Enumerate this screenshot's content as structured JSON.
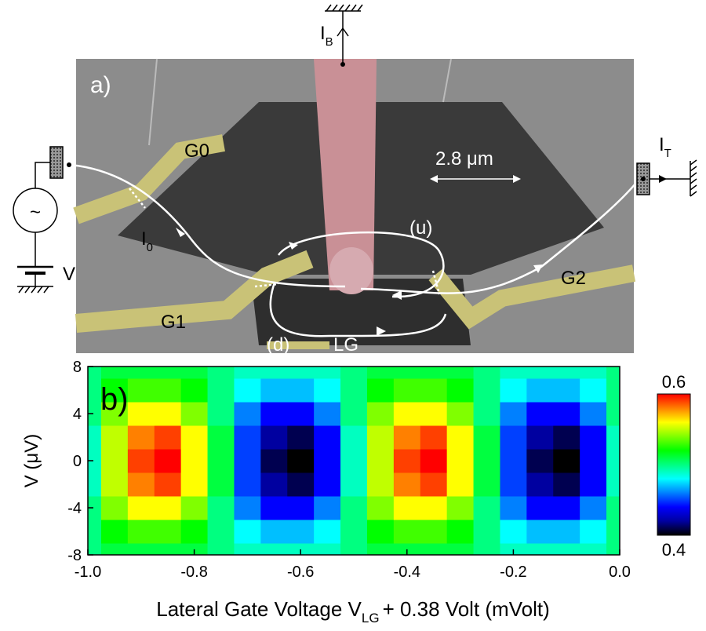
{
  "panel_a": {
    "label": "a)",
    "currents": [
      {
        "symbol": "I",
        "subscript": "B"
      },
      {
        "symbol": "I",
        "subscript": "T"
      },
      {
        "symbol": "I",
        "subscript": "0"
      }
    ],
    "gates": [
      "G0",
      "G1",
      "G2",
      "LG"
    ],
    "paths": [
      "(u)",
      "(d)"
    ],
    "source_symbol": "~",
    "voltage": "V",
    "scale_bar": "2.8 μm"
  },
  "chart_data": {
    "type": "contour",
    "label": "b)",
    "xlabel": {
      "before": "Lateral Gate Voltage V",
      "subscript": "LG",
      "after": "+ 0.38 Volt (mVolt)"
    },
    "ylabel": "V (μV)",
    "x": [
      -1.0,
      -0.95,
      -0.9,
      -0.85,
      -0.8,
      -0.75,
      -0.7,
      -0.65,
      -0.6,
      -0.55,
      -0.5,
      -0.45,
      -0.4,
      -0.35,
      -0.3,
      -0.25,
      -0.2,
      -0.15,
      -0.1,
      -0.05,
      0.0
    ],
    "y": [
      -8,
      -6,
      -4,
      -2,
      0,
      2,
      4,
      6,
      8
    ],
    "z": [
      [
        0.5,
        0.51,
        0.51,
        0.51,
        0.51,
        0.5,
        0.49,
        0.49,
        0.49,
        0.49,
        0.5,
        0.51,
        0.51,
        0.51,
        0.51,
        0.5,
        0.49,
        0.49,
        0.49,
        0.49,
        0.5
      ],
      [
        0.5,
        0.52,
        0.53,
        0.53,
        0.52,
        0.5,
        0.48,
        0.47,
        0.47,
        0.48,
        0.5,
        0.52,
        0.53,
        0.53,
        0.52,
        0.5,
        0.48,
        0.47,
        0.47,
        0.48,
        0.5
      ],
      [
        0.5,
        0.54,
        0.56,
        0.56,
        0.54,
        0.5,
        0.46,
        0.44,
        0.44,
        0.46,
        0.5,
        0.54,
        0.56,
        0.56,
        0.54,
        0.5,
        0.46,
        0.44,
        0.44,
        0.46,
        0.5
      ],
      [
        0.49,
        0.55,
        0.58,
        0.59,
        0.56,
        0.51,
        0.45,
        0.42,
        0.41,
        0.44,
        0.49,
        0.55,
        0.58,
        0.59,
        0.56,
        0.51,
        0.45,
        0.42,
        0.41,
        0.44,
        0.49
      ],
      [
        0.49,
        0.55,
        0.59,
        0.6,
        0.56,
        0.51,
        0.45,
        0.41,
        0.4,
        0.44,
        0.49,
        0.55,
        0.59,
        0.6,
        0.56,
        0.51,
        0.45,
        0.41,
        0.4,
        0.44,
        0.49
      ],
      [
        0.49,
        0.55,
        0.58,
        0.59,
        0.56,
        0.51,
        0.45,
        0.42,
        0.41,
        0.44,
        0.49,
        0.55,
        0.58,
        0.59,
        0.56,
        0.51,
        0.45,
        0.42,
        0.41,
        0.44,
        0.49
      ],
      [
        0.5,
        0.54,
        0.56,
        0.56,
        0.54,
        0.5,
        0.46,
        0.44,
        0.44,
        0.46,
        0.5,
        0.54,
        0.56,
        0.56,
        0.54,
        0.5,
        0.46,
        0.44,
        0.44,
        0.46,
        0.5
      ],
      [
        0.5,
        0.52,
        0.53,
        0.53,
        0.52,
        0.5,
        0.48,
        0.47,
        0.47,
        0.48,
        0.5,
        0.52,
        0.53,
        0.53,
        0.52,
        0.5,
        0.48,
        0.47,
        0.47,
        0.48,
        0.5
      ],
      [
        0.5,
        0.51,
        0.51,
        0.51,
        0.51,
        0.5,
        0.49,
        0.49,
        0.49,
        0.49,
        0.5,
        0.51,
        0.51,
        0.51,
        0.51,
        0.5,
        0.49,
        0.49,
        0.49,
        0.49,
        0.5
      ]
    ],
    "xlim": [
      -1.0,
      0.0
    ],
    "xticks": [
      {
        "value": -1.0,
        "label": "-1.0"
      },
      -0.8,
      -0.6,
      -0.4,
      -0.2,
      {
        "value": 0.0,
        "label": "0.0"
      }
    ],
    "ylim": [
      -8,
      8
    ],
    "yticks": [
      -8,
      -4,
      0,
      4,
      8
    ],
    "zlim": [
      0.4,
      0.6
    ],
    "zticks": [
      0.4,
      0.6
    ],
    "colormap": [
      "#000000",
      "#0000a0",
      "#0000ff",
      "#0080ff",
      "#00ffff",
      "#00ff80",
      "#00ff00",
      "#80ff00",
      "#ffff00",
      "#ff8000",
      "#ff0000"
    ]
  }
}
